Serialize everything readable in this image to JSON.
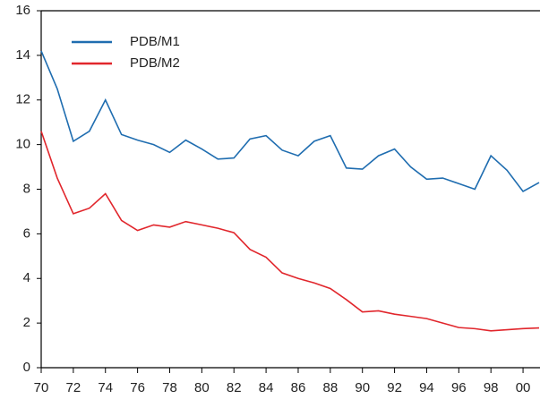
{
  "chart_data": {
    "type": "line",
    "x": [
      1970,
      1971,
      1972,
      1973,
      1974,
      1975,
      1976,
      1977,
      1978,
      1979,
      1980,
      1981,
      1982,
      1983,
      1984,
      1985,
      1986,
      1987,
      1988,
      1989,
      1990,
      1991,
      1992,
      1993,
      1994,
      1995,
      1996,
      1997,
      1998,
      1999,
      2000,
      2001
    ],
    "series": [
      {
        "name": "PDB/M1",
        "color": "#1f6db0",
        "values": [
          14.2,
          12.5,
          10.15,
          10.6,
          12.0,
          10.45,
          10.2,
          10.0,
          9.65,
          10.2,
          9.8,
          9.35,
          9.4,
          10.25,
          10.4,
          9.75,
          9.5,
          10.15,
          10.4,
          8.95,
          8.9,
          9.5,
          9.8,
          9.0,
          8.45,
          8.5,
          8.25,
          8.0,
          9.5,
          8.85,
          7.9,
          8.3
        ]
      },
      {
        "name": "PDB/M2",
        "color": "#e1262c",
        "values": [
          10.6,
          8.5,
          6.9,
          7.15,
          7.8,
          6.6,
          6.15,
          6.4,
          6.3,
          6.55,
          6.4,
          6.25,
          6.05,
          5.3,
          4.95,
          4.25,
          4.0,
          3.8,
          3.55,
          3.05,
          2.5,
          2.55,
          2.4,
          2.3,
          2.2,
          2.0,
          1.8,
          1.75,
          1.65,
          1.7,
          1.75,
          1.78
        ]
      }
    ],
    "xlim": [
      1970,
      2001
    ],
    "xticks": [
      {
        "value": 1970,
        "label": "70"
      },
      {
        "value": 1972,
        "label": "72"
      },
      {
        "value": 1974,
        "label": "74"
      },
      {
        "value": 1976,
        "label": "76"
      },
      {
        "value": 1978,
        "label": "78"
      },
      {
        "value": 1980,
        "label": "80"
      },
      {
        "value": 1982,
        "label": "82"
      },
      {
        "value": 1984,
        "label": "84"
      },
      {
        "value": 1986,
        "label": "86"
      },
      {
        "value": 1988,
        "label": "88"
      },
      {
        "value": 1990,
        "label": "90"
      },
      {
        "value": 1992,
        "label": "92"
      },
      {
        "value": 1994,
        "label": "94"
      },
      {
        "value": 1996,
        "label": "96"
      },
      {
        "value": 1998,
        "label": "98"
      },
      {
        "value": 2000,
        "label": "00"
      }
    ],
    "ylim": [
      0,
      16
    ],
    "yticks": [
      0,
      2,
      4,
      6,
      8,
      10,
      12,
      14,
      16
    ],
    "legend": "upper left"
  }
}
